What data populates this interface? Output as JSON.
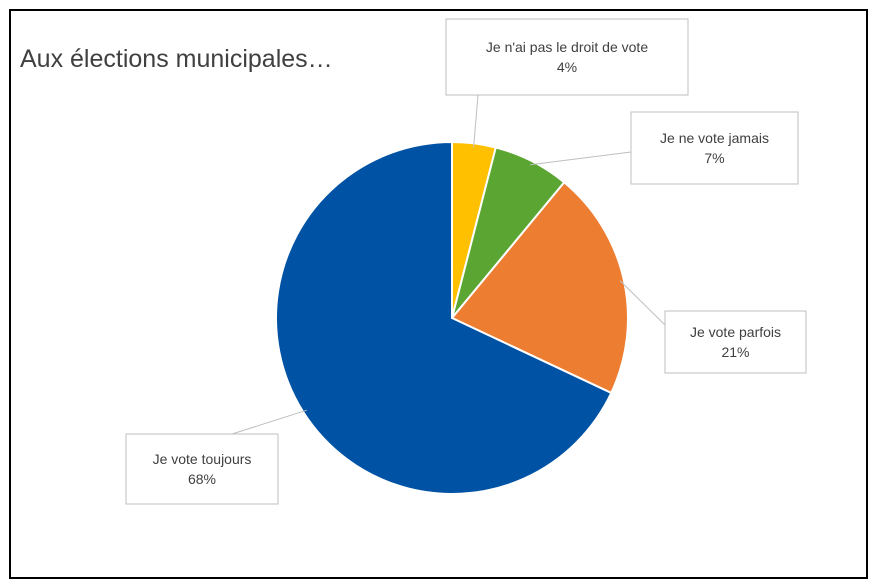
{
  "chart_data": {
    "type": "pie",
    "title": "Aux élections municipales…",
    "slices": [
      {
        "label": "Je n'ai pas le droit de vote",
        "value": 4,
        "value_text": "4%",
        "color": "#FFC000"
      },
      {
        "label": "Je ne vote jamais",
        "value": 7,
        "value_text": "7%",
        "color": "#5BA532"
      },
      {
        "label": "Je vote parfois",
        "value": 21,
        "value_text": "21%",
        "color": "#ED7D31"
      },
      {
        "label": "Je vote toujours",
        "value": 68,
        "value_text": "68%",
        "color": "#0052A4"
      }
    ],
    "legend": "none",
    "data_labels": "callouts"
  }
}
